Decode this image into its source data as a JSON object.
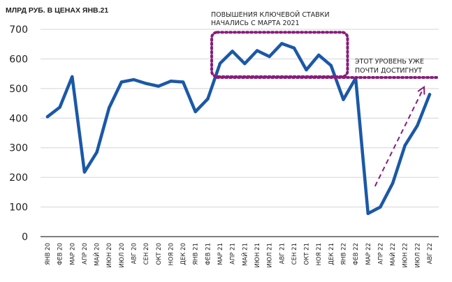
{
  "chart_data": {
    "type": "line",
    "ylabel": "МЛРД РУБ. В ЦЕНАХ ЯНВ.21",
    "ylim": [
      0,
      700
    ],
    "yticks": [
      "0",
      "100",
      "200",
      "300",
      "400",
      "500",
      "600",
      "700"
    ],
    "grid": true,
    "categories": [
      "ЯНВ 20",
      "ФЕВ 20",
      "МАР 20",
      "АПР 20",
      "МАЙ 20",
      "ИЮН 20",
      "ИЮЛ 20",
      "АВГ 20",
      "СЕН 20",
      "ОКТ 20",
      "НОЯ 20",
      "ДЕК 20",
      "ЯНВ 21",
      "ФЕВ 21",
      "МАР 21",
      "АПР 21",
      "МАЙ 21",
      "ИЮН 21",
      "ИЮЛ 21",
      "АВГ 21",
      "СЕН 21",
      "ОКТ 21",
      "НОЯ 21",
      "ДЕК 21",
      "ЯНВ 22",
      "ФЕВ 22",
      "МАР 22",
      "АПР 22",
      "МАЙ 22",
      "ИЮН 22",
      "ИЮЛ 22",
      "АВГ 22"
    ],
    "series": [
      {
        "values": [
          405,
          437,
          540,
          218,
          285,
          435,
          522,
          530,
          517,
          508,
          525,
          522,
          422,
          465,
          585,
          626,
          584,
          628,
          608,
          652,
          637,
          563,
          613,
          578,
          463,
          535,
          78,
          100,
          180,
          308,
          375,
          480
        ],
        "color": "#1b58a7"
      }
    ],
    "annotations": {
      "box_text_line1": "ПОВЫШЕНИЯ КЛЮЧЕВОЙ СТАВКИ",
      "box_text_line2": "НАЧАЛИСЬ С МАРТА 2021",
      "level_text_line1": "ЭТОТ УРОВЕНЬ УЖЕ",
      "level_text_line2": "ПОЧТИ ДОСТИГНУТ",
      "box_range": {
        "x_from": "МАР 21",
        "x_to": "ЯНВ 22",
        "y_from": 540,
        "y_to": 690
      },
      "level_value": 535,
      "arrow": {
        "from": {
          "x": "МАР 22",
          "y": 170
        },
        "to": {
          "x": "АВГ 22",
          "y": 505
        }
      },
      "color": "#8a1c7c"
    },
    "colors": {
      "line": "#1b58a7",
      "annotation": "#8a1c7c",
      "grid": "#d4d4d4",
      "text": "#1f1f1f"
    }
  }
}
